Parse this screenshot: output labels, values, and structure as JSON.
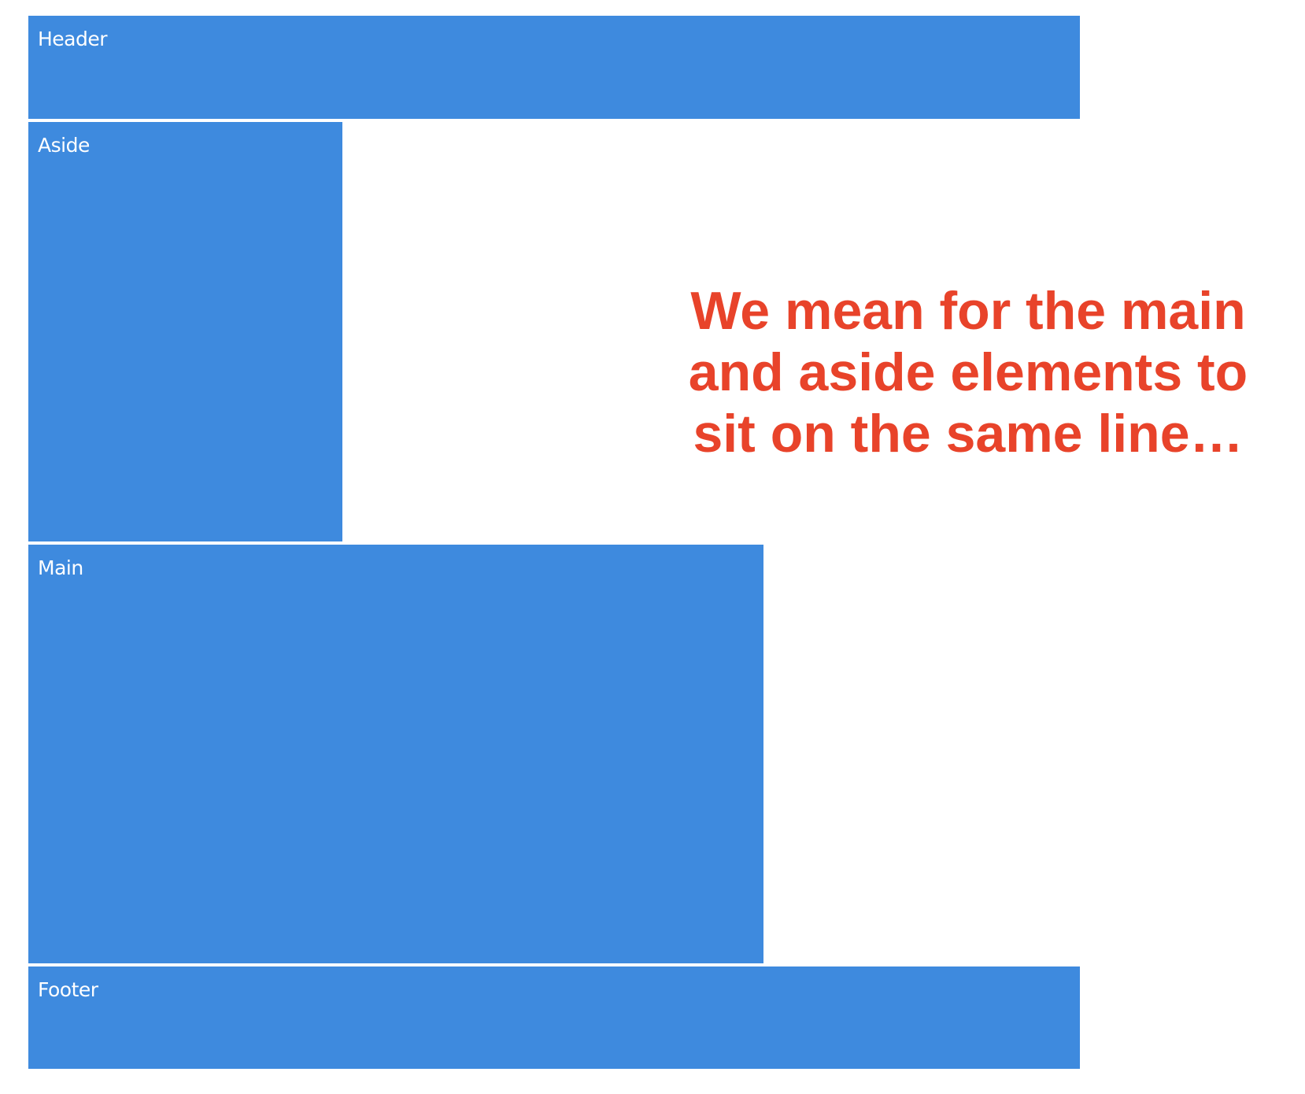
{
  "layout_boxes": {
    "header_label": "Header",
    "aside_label": "Aside",
    "main_label": "Main",
    "footer_label": "Footer"
  },
  "callout": {
    "text": "We mean for the main and aside elements to sit on the same line…"
  },
  "colors": {
    "box_fill": "#3e8ade",
    "box_text": "#ffffff",
    "callout_text": "#e8432a",
    "background": "#ffffff"
  }
}
